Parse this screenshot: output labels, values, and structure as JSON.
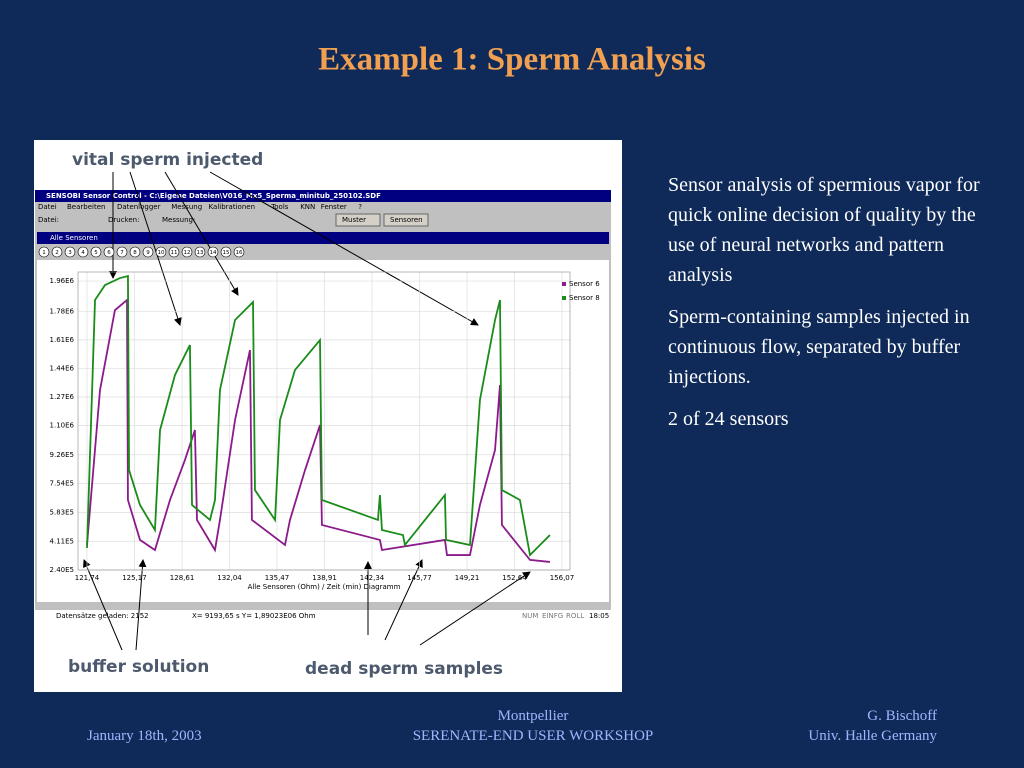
{
  "slide": {
    "title": "Example 1: Sperm Analysis",
    "paragraphs": [
      "Sensor analysis of spermious vapor for quick online decision of quality by the use of neural networks and pattern analysis",
      "Sperm-containing samples injected in continuous flow, separated by buffer injections.",
      "2 of 24 sensors"
    ],
    "footer": {
      "date": "January 18th, 2003",
      "venue": "Montpellier",
      "event": "SERENATE-END USER WORKSHOP",
      "author": "G. Bischoff",
      "affiliation": "Univ. Halle Germany"
    }
  },
  "screenshot": {
    "annotations": {
      "vital": "vital sperm injected",
      "buffer": "buffer solution",
      "dead": "dead sperm samples"
    },
    "window_title": "SENSOBI Sensor Control  -  C:\\Eigene Dateien\\V016_Mx5_Sperma_minitub_250102.SDF",
    "menu": [
      "Datei",
      "Bearbeiten",
      "Datenlogger",
      "Messung",
      "Kalibrationen",
      "Tools",
      "KNN",
      "Fenster",
      "?"
    ],
    "toolbar": [
      "Datei:",
      "Drucken:",
      "Messung:",
      "Muster",
      "Sensoren"
    ],
    "inner_title": "Alle Sensoren",
    "sensor_buttons": [
      "1",
      "2",
      "3",
      "4",
      "5",
      "6",
      "7",
      "8",
      "9",
      "10",
      "11",
      "12",
      "13",
      "14",
      "15",
      "16"
    ],
    "status": [
      "Datensätze geladen:  2152",
      "X= 9193,65 s  Y= 1,89023E06 Ohm",
      "NUM",
      "EINFG",
      "ROLL",
      "18:05"
    ]
  },
  "chart_data": {
    "type": "line",
    "x_label": "Alle Sensoren (Ohm) / Zeit (min) Diagramm",
    "xlim": [
      121.09,
      156.65
    ],
    "ylim": [
      240000,
      2014000
    ],
    "xticks": [
      {
        "value": 121.74,
        "label": "121,74"
      },
      {
        "value": 125.17,
        "label": "125,17"
      },
      {
        "value": 128.61,
        "label": "128,61"
      },
      {
        "value": 132.04,
        "label": "132,04"
      },
      {
        "value": 135.47,
        "label": "135,47"
      },
      {
        "value": 138.91,
        "label": "138,91"
      },
      {
        "value": 142.34,
        "label": "142,34"
      },
      {
        "value": 145.77,
        "label": "145,77"
      },
      {
        "value": 149.21,
        "label": "149,21"
      },
      {
        "value": 152.64,
        "label": "152,64"
      },
      {
        "value": 156.07,
        "label": "156,07"
      }
    ],
    "yticks": [
      {
        "value": 240000,
        "label": "2.40E5"
      },
      {
        "value": 411000,
        "label": "4.11E5"
      },
      {
        "value": 583000,
        "label": "5.83E5"
      },
      {
        "value": 754000,
        "label": "7.54E5"
      },
      {
        "value": 926000,
        "label": "9.26E5"
      },
      {
        "value": 1100000,
        "label": "1.10E6"
      },
      {
        "value": 1270000,
        "label": "1.27E6"
      },
      {
        "value": 1440000,
        "label": "1.44E6"
      },
      {
        "value": 1610000,
        "label": "1.61E6"
      },
      {
        "value": 1780000,
        "label": "1.78E6"
      },
      {
        "value": 1960000,
        "label": "1.96E6"
      }
    ],
    "grid": true,
    "legend": "top-right",
    "series": [
      {
        "name": "Sensor 6",
        "color": "#8b1a8b",
        "x": [
          121.74,
          122.68,
          123.76,
          124.63,
          124.7,
          125.57,
          126.65,
          127.74,
          128.82,
          129.54,
          129.69,
          130.99,
          131.35,
          132.44,
          133.52,
          133.66,
          136.05,
          136.41,
          137.5,
          138.58,
          138.72,
          142.91,
          143.06,
          147.61,
          147.76,
          149.42,
          150.14,
          151.23,
          151.59,
          151.73,
          153.76,
          155.2
        ],
        "values": [
          389000,
          1311000,
          1787000,
          1847000,
          657000,
          419000,
          359000,
          657000,
          895000,
          1073000,
          538000,
          359000,
          538000,
          1133000,
          1549000,
          538000,
          389000,
          538000,
          835000,
          1103000,
          508000,
          419000,
          359000,
          419000,
          329000,
          329000,
          627000,
          954000,
          1341000,
          508000,
          300000,
          288000
        ]
      },
      {
        "name": "Sensor 8",
        "color": "#1a8c1a",
        "x": [
          121.74,
          122.32,
          123.04,
          124.12,
          124.7,
          124.78,
          125.57,
          126.65,
          127.02,
          128.1,
          129.18,
          129.33,
          130.63,
          130.99,
          131.35,
          132.44,
          133.74,
          133.88,
          135.33,
          135.69,
          136.77,
          138.58,
          138.72,
          142.77,
          142.91,
          143.06,
          144.58,
          144.72,
          147.61,
          147.69,
          149.42,
          150.14,
          151.23,
          151.59,
          151.73,
          153.03,
          153.76,
          154.48,
          155.2
        ],
        "values": [
          371000,
          1847000,
          1936000,
          1978000,
          1990000,
          835000,
          627000,
          478000,
          1073000,
          1401000,
          1579000,
          627000,
          538000,
          657000,
          1311000,
          1728000,
          1835000,
          716000,
          538000,
          1133000,
          1430000,
          1609000,
          657000,
          538000,
          686000,
          478000,
          448000,
          389000,
          686000,
          419000,
          389000,
          1252000,
          1728000,
          1847000,
          716000,
          657000,
          329000,
          389000,
          448000
        ]
      }
    ]
  }
}
